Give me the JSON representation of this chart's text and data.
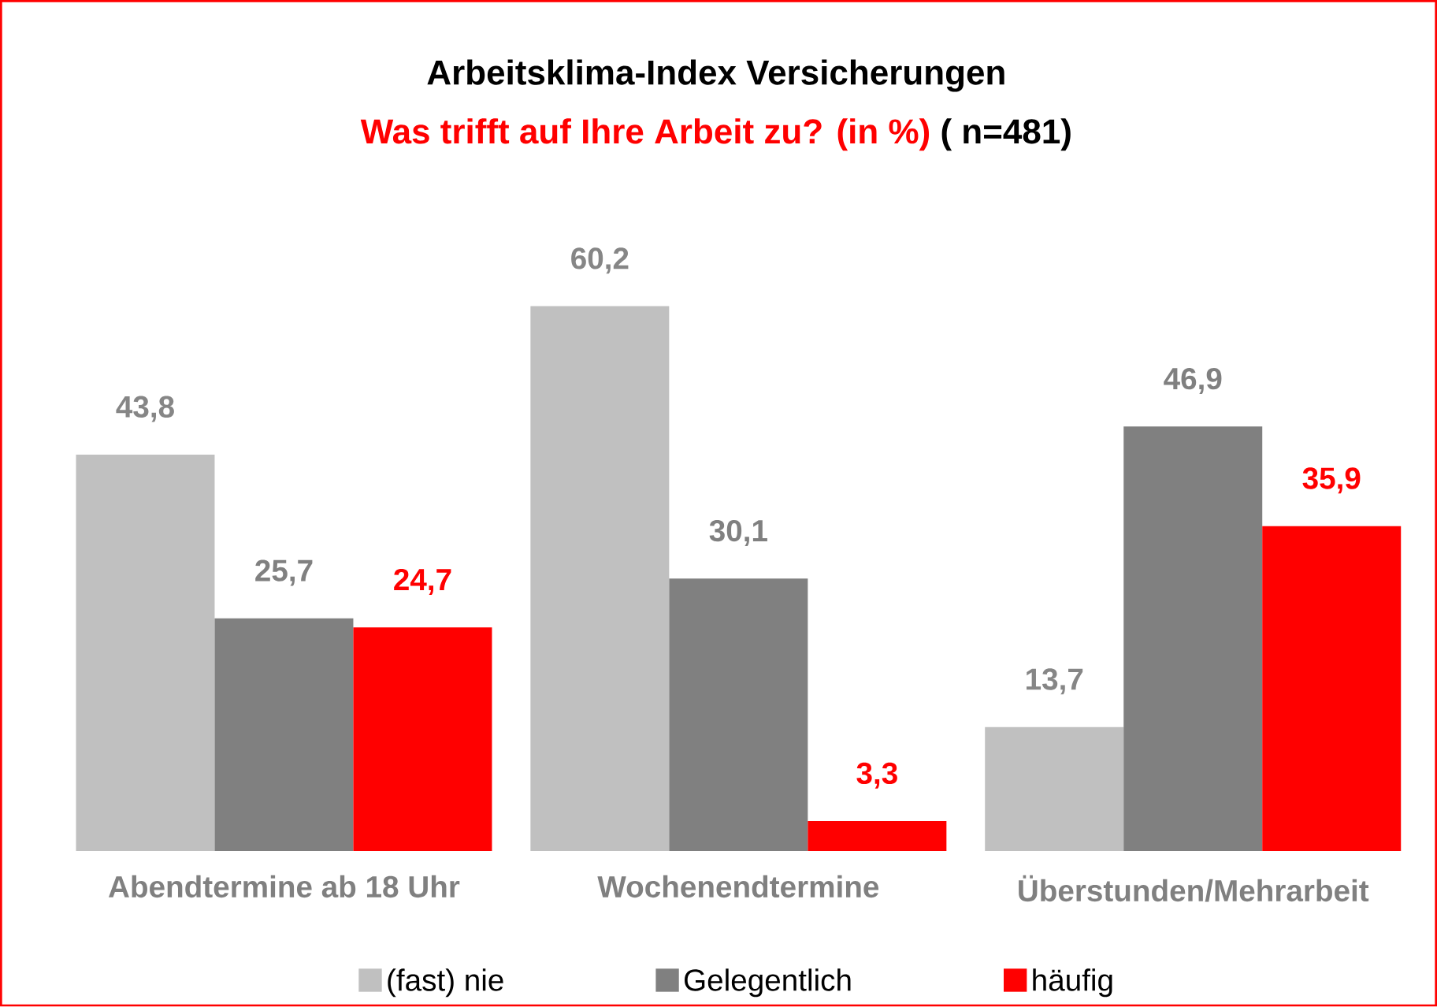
{
  "chart_data": {
    "type": "bar",
    "title": "Arbeitsklima-Index Versicherungen",
    "subtitle": "Was trifft auf Ihre Arbeit zu? (in %)",
    "annotations": [
      "( n=481)"
    ],
    "categories": [
      "Abendtermine ab 18 Uhr",
      "Wochenendtermine",
      "Überstunden/Mehrarbeit"
    ],
    "series": [
      {
        "name": "(fast) nie",
        "color": "#c0c0c0",
        "values": [
          43.8,
          60.2,
          13.7
        ],
        "value_labels": [
          "43,8",
          "60,2",
          "13,7"
        ]
      },
      {
        "name": "Gelegentlich",
        "color": "#808080",
        "values": [
          25.7,
          30.1,
          46.9
        ],
        "value_labels": [
          "25,7",
          "30,1",
          "46,9"
        ]
      },
      {
        "name": "häufig",
        "color": "#ff0000",
        "values": [
          24.7,
          3.3,
          35.9
        ],
        "value_labels": [
          "24,7",
          "3,3",
          "35,9"
        ]
      }
    ],
    "legend": "bottom",
    "grid": false
  }
}
